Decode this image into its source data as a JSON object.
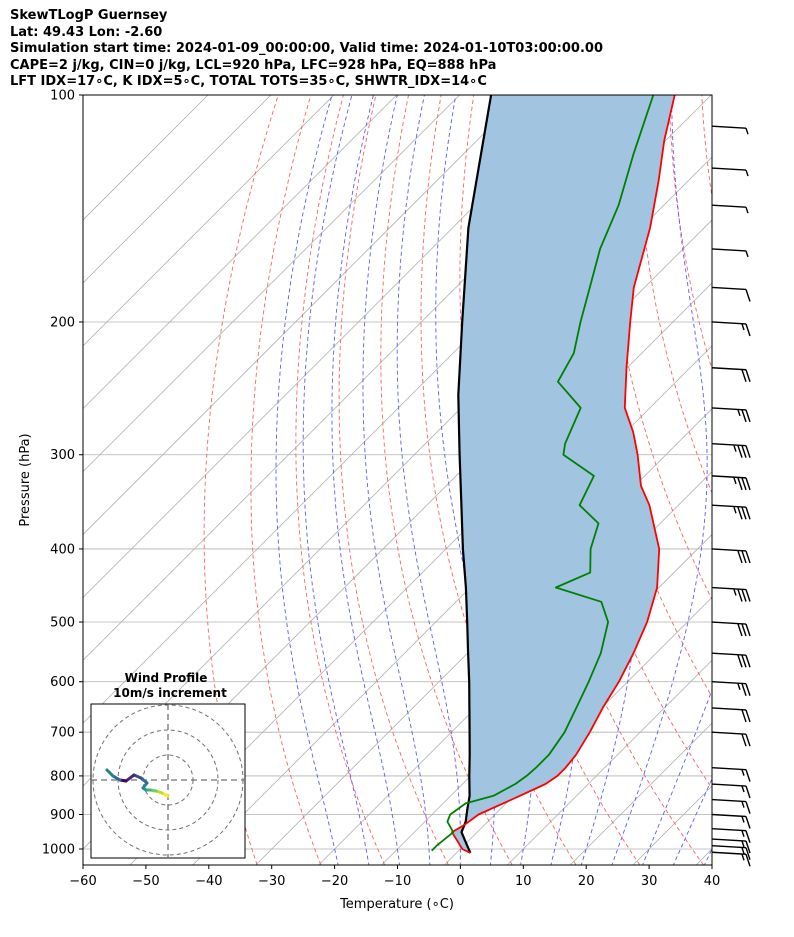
{
  "header": {
    "line1": "SkewTLogP Guernsey",
    "line2": "Lat: 49.43   Lon: -2.60",
    "line3": "Simulation start time: 2024-01-09_00:00:00, Valid time: 2024-01-10T03:00:00.00",
    "line4": "CAPE=2 j/kg, CIN=0 j/kg, LCL=920 hPa, LFC=928 hPa, EQ=888 hPa",
    "line5": "LFT IDX=17∘C, K IDX=5∘C, TOTAL TOTS=35∘C, SHWTR_IDX=14∘C"
  },
  "chart_data": {
    "type": "line",
    "xlabel": "Temperature (∘C)",
    "ylabel": "Pressure (hPa)",
    "xlim": [
      -60,
      40
    ],
    "ylim": [
      1050,
      100
    ],
    "y_scale": "log",
    "x_ticks": [
      -60,
      -50,
      -40,
      -30,
      -20,
      -10,
      0,
      10,
      20,
      30,
      40
    ],
    "x_tick_labels": [
      "−60",
      "−50",
      "−40",
      "−30",
      "−20",
      "−10",
      "0",
      "10",
      "20",
      "30",
      "40"
    ],
    "y_ticks": [
      1000,
      900,
      800,
      700,
      600,
      500,
      400,
      300,
      200,
      100
    ],
    "y_tick_labels": [
      "1000",
      "900",
      "800",
      "700",
      "600",
      "500",
      "400",
      "300",
      "200",
      "100"
    ],
    "grid": true,
    "series": [
      {
        "color": "#ff0000",
        "pressure": [
          1012,
          1000,
          950,
          930,
          900,
          850,
          820,
          800,
          780,
          750,
          700,
          650,
          600,
          550,
          500,
          450,
          400,
          350,
          330,
          300,
          280,
          260,
          230,
          200,
          180,
          150,
          130,
          115,
          100
        ],
        "values": [
          2.2,
          0.3,
          -4.0,
          -3.2,
          -2.6,
          1.0,
          3.2,
          3.8,
          3.8,
          3.4,
          2.0,
          0.2,
          -1.4,
          -3.6,
          -6.4,
          -10.3,
          -16.1,
          -24.6,
          -29.0,
          -34.5,
          -38.8,
          -44.0,
          -50.1,
          -56.8,
          -61.7,
          -68.6,
          -74.7,
          -80.2,
          -85.8
        ]
      },
      {
        "color": "#008000",
        "pressure": [
          1005,
          990,
          950,
          920,
          900,
          870,
          850,
          820,
          800,
          780,
          750,
          700,
          650,
          600,
          550,
          500,
          470,
          450,
          430,
          400,
          370,
          350,
          320,
          300,
          290,
          260,
          240,
          220,
          200,
          180,
          160,
          140,
          120,
          100
        ],
        "values": [
          -4.3,
          -4.3,
          -3.8,
          -6.4,
          -7.1,
          -6.4,
          -3.2,
          -1.6,
          -1.1,
          -0.9,
          -0.9,
          -2.0,
          -4.0,
          -6.2,
          -8.8,
          -12.6,
          -16.9,
          -26.4,
          -23.3,
          -27.0,
          -29.8,
          -35.7,
          -38.1,
          -46.3,
          -47.8,
          -51.0,
          -58.8,
          -60.8,
          -64.7,
          -68.7,
          -73.2,
          -77.2,
          -82.9,
          -89.2
        ]
      },
      {
        "color": "#000000",
        "pressure": [
          1012,
          950,
          920,
          888,
          850,
          800,
          750,
          700,
          650,
          600,
          550,
          500,
          450,
          400,
          350,
          300,
          250,
          200,
          150,
          100
        ],
        "values": [
          2.2,
          -2.5,
          -3.5,
          -5.1,
          -7.0,
          -10.2,
          -13.5,
          -17.1,
          -21.0,
          -25.2,
          -29.9,
          -35.0,
          -40.7,
          -47.3,
          -54.5,
          -62.8,
          -72.5,
          -83.5,
          -97.5,
          -115.0
        ]
      }
    ],
    "shaded_area": {
      "color": "#a1c5e0",
      "between": "parcel and temperature"
    },
    "inset": {
      "title": "Wind Profile",
      "subtitle": "10m/s increment",
      "ring_step_ms": 10
    },
    "wind_barbs": {
      "pressure": [
        1010,
        990,
        970,
        940,
        900,
        860,
        820,
        780,
        700,
        650,
        600,
        550,
        500,
        450,
        400,
        350,
        320,
        290,
        260,
        230,
        200,
        180,
        160,
        140,
        125,
        110
      ],
      "speed_kt": [
        15,
        15,
        15,
        15,
        15,
        15,
        15,
        15,
        20,
        20,
        25,
        30,
        30,
        35,
        30,
        35,
        35,
        35,
        25,
        20,
        15,
        10,
        5,
        5,
        5,
        5
      ]
    }
  }
}
